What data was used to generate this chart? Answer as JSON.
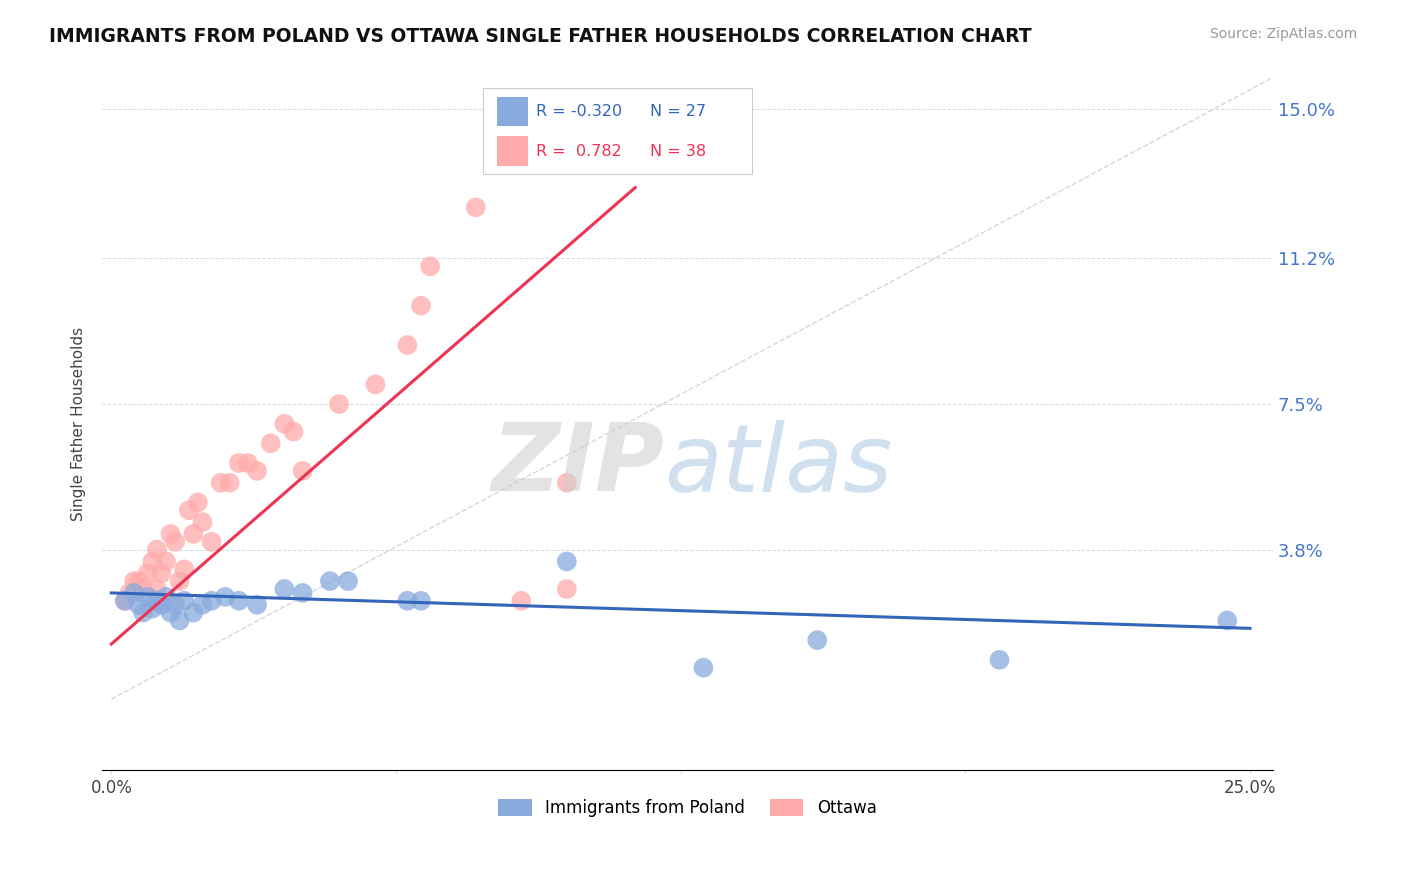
{
  "title": "IMMIGRANTS FROM POLAND VS OTTAWA SINGLE FATHER HOUSEHOLDS CORRELATION CHART",
  "source": "Source: ZipAtlas.com",
  "ylabel": "Single Father Households",
  "yticks": [
    0.0,
    0.038,
    0.075,
    0.112,
    0.15
  ],
  "ytick_labels": [
    "",
    "3.8%",
    "7.5%",
    "11.2%",
    "15.0%"
  ],
  "xticks": [
    0.0,
    0.0625,
    0.125,
    0.1875,
    0.25
  ],
  "xtick_labels": [
    "0.0%",
    "",
    "",
    "",
    "25.0%"
  ],
  "xmin": -0.002,
  "xmax": 0.255,
  "ymin": -0.018,
  "ymax": 0.158,
  "color_blue": "#88AADD",
  "color_pink": "#FFAAAA",
  "color_line_blue": "#3366BB",
  "color_line_pink": "#EE3355",
  "color_title": "#111111",
  "color_axis_label": "#444444",
  "color_right_labels": "#4477CC",
  "color_source": "#999999",
  "blue_scatter_x": [
    0.003,
    0.005,
    0.006,
    0.007,
    0.008,
    0.009,
    0.01,
    0.011,
    0.012,
    0.013,
    0.014,
    0.015,
    0.016,
    0.018,
    0.02,
    0.022,
    0.025,
    0.028,
    0.032,
    0.038,
    0.042,
    0.048,
    0.052,
    0.065,
    0.068,
    0.1,
    0.13,
    0.155,
    0.195,
    0.245
  ],
  "blue_scatter_y": [
    0.025,
    0.027,
    0.024,
    0.022,
    0.026,
    0.023,
    0.025,
    0.024,
    0.026,
    0.022,
    0.024,
    0.02,
    0.025,
    0.022,
    0.024,
    0.025,
    0.026,
    0.025,
    0.024,
    0.028,
    0.027,
    0.03,
    0.03,
    0.025,
    0.025,
    0.035,
    0.008,
    0.015,
    0.01,
    0.02
  ],
  "pink_scatter_x": [
    0.003,
    0.004,
    0.005,
    0.006,
    0.007,
    0.008,
    0.009,
    0.01,
    0.01,
    0.011,
    0.012,
    0.013,
    0.014,
    0.015,
    0.016,
    0.017,
    0.018,
    0.019,
    0.02,
    0.022,
    0.024,
    0.026,
    0.028,
    0.03,
    0.032,
    0.035,
    0.038,
    0.04,
    0.042,
    0.05,
    0.058,
    0.065,
    0.068,
    0.07,
    0.08,
    0.09,
    0.1,
    0.1
  ],
  "pink_scatter_y": [
    0.025,
    0.027,
    0.03,
    0.03,
    0.028,
    0.032,
    0.035,
    0.038,
    0.028,
    0.032,
    0.035,
    0.042,
    0.04,
    0.03,
    0.033,
    0.048,
    0.042,
    0.05,
    0.045,
    0.04,
    0.055,
    0.055,
    0.06,
    0.06,
    0.058,
    0.065,
    0.07,
    0.068,
    0.058,
    0.075,
    0.08,
    0.09,
    0.1,
    0.11,
    0.125,
    0.025,
    0.028,
    0.055
  ],
  "blue_line_x": [
    0.0,
    0.25
  ],
  "blue_line_y": [
    0.027,
    0.018
  ],
  "pink_line_x": [
    0.0,
    0.115
  ],
  "pink_line_y": [
    0.014,
    0.13
  ],
  "diagonal_line_x": [
    0.0,
    0.255
  ],
  "diagonal_line_y": [
    0.0,
    0.158
  ]
}
